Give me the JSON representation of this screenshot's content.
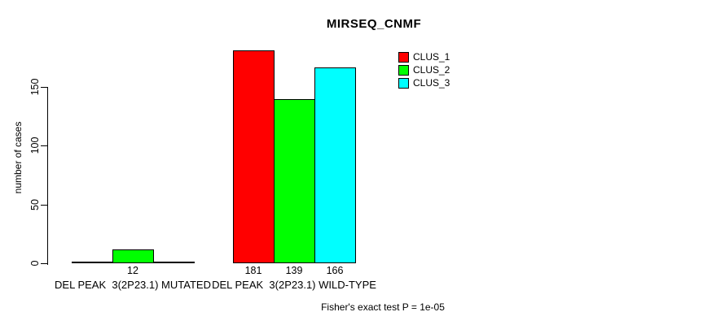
{
  "chart_data": {
    "type": "bar",
    "title": "MIRSEQ_CNMF",
    "ylabel": "number of cases",
    "yticks": [
      0,
      50,
      100,
      150
    ],
    "ylim": [
      0,
      185
    ],
    "grid": false,
    "legend_position": "top-right-outside",
    "categories": [
      "DEL PEAK  3(2P23.1) MUTATED",
      "DEL PEAK  3(2P23.1) WILD-TYPE"
    ],
    "series": [
      {
        "name": "CLUS_1",
        "color": "#ff0000",
        "values": [
          0,
          181
        ]
      },
      {
        "name": "CLUS_2",
        "color": "#00ff00",
        "values": [
          12,
          139
        ]
      },
      {
        "name": "CLUS_3",
        "color": "#00ffff",
        "values": [
          0,
          166
        ]
      }
    ],
    "bar_border_color": "#000000",
    "show_value_labels_for_zero": false,
    "footer": "Fisher's exact test P = 1e-05"
  }
}
